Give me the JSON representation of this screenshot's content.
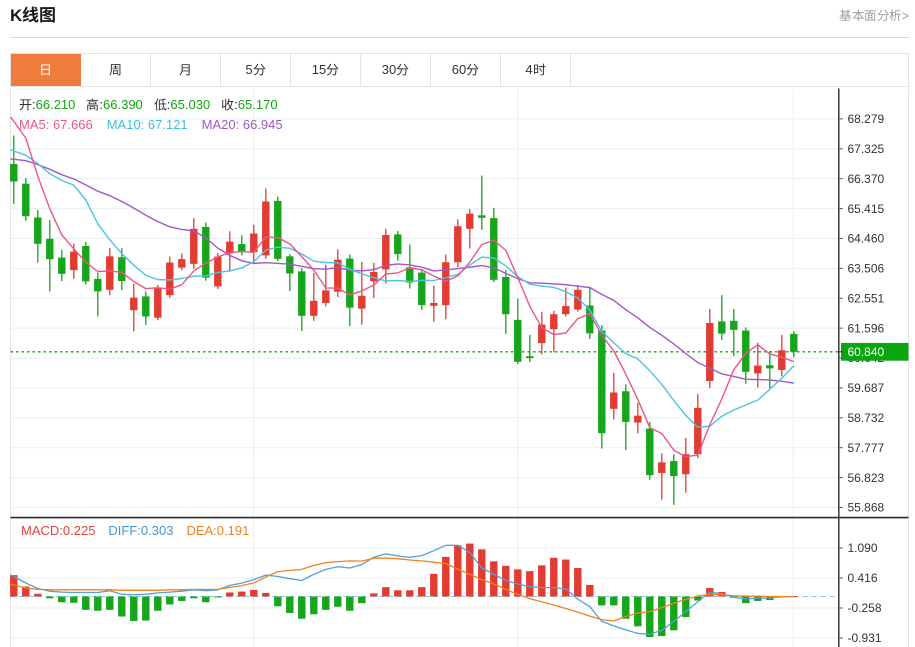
{
  "header": {
    "title": "K线图",
    "link_label": "基本面分析>"
  },
  "tabs": {
    "active_index": 0,
    "items": [
      {
        "id": "day",
        "label": "日"
      },
      {
        "id": "week",
        "label": "周"
      },
      {
        "id": "month",
        "label": "月"
      },
      {
        "id": "5min",
        "label": "5分"
      },
      {
        "id": "15min",
        "label": "15分"
      },
      {
        "id": "30min",
        "label": "30分"
      },
      {
        "id": "60min",
        "label": "60分"
      },
      {
        "id": "4hour",
        "label": "4时"
      }
    ]
  },
  "info_bar": {
    "ohlc_items": [
      {
        "id": "open",
        "label": "开:",
        "value": "66.210"
      },
      {
        "id": "high",
        "label": "高:",
        "value": "66.390"
      },
      {
        "id": "low",
        "label": "低:",
        "value": "65.030"
      },
      {
        "id": "close",
        "label": "收:",
        "value": "65.170"
      }
    ],
    "ma_items": [
      {
        "id": "ma5",
        "label": "MA5:",
        "value": "67.666"
      },
      {
        "id": "ma10",
        "label": "MA10:",
        "value": "67.121"
      },
      {
        "id": "ma20",
        "label": "MA20:",
        "value": "66.945"
      }
    ]
  },
  "macd_info": {
    "items": [
      {
        "id": "macd",
        "label": "MACD:",
        "value": "0.225"
      },
      {
        "id": "diff",
        "label": "DIFF:",
        "value": "0.303"
      },
      {
        "id": "dea",
        "label": "DEA:",
        "value": "0.191"
      }
    ]
  },
  "colors": {
    "accent_orange": "#ee7c3d",
    "up_red": "#e23b31",
    "down_green": "#16a51b",
    "ma5_pink": "#ee5587",
    "ma10_cyan": "#4cc3e3",
    "ma20_purple": "#a158c5",
    "diff_blue": "#55a0d8",
    "dea_orange": "#f08220",
    "badge_green": "#0ba50f",
    "value_green": "#10a710",
    "macd_label_red": "#e8403a",
    "diff_label_blue": "#4495d8",
    "dea_label_orange": "#f0821e",
    "grid": "#e8eff6",
    "axis_dark": "#2b2b2b",
    "dotted_current": "#16a016",
    "zero_dash_blue": "#86c6ea"
  },
  "chart_data": {
    "type": "candlestick",
    "title": "K线图",
    "legend": [
      "MA5",
      "MA10",
      "MA20",
      "MACD",
      "DIFF",
      "DEA"
    ],
    "price_axis_ticks": [
      "68.279",
      "67.325",
      "66.370",
      "65.415",
      "64.460",
      "63.506",
      "62.551",
      "61.596",
      "60.642",
      "59.687",
      "58.732",
      "57.777",
      "56.823",
      "55.868"
    ],
    "macd_axis_ticks": [
      "1.090",
      "0.416",
      "-0.258",
      "-0.931"
    ],
    "current_price": "60.840",
    "current_price_value": 60.84,
    "candles_ohlc": [
      [
        66.84,
        67.75,
        65.56,
        66.28
      ],
      [
        66.21,
        66.39,
        65.03,
        65.17
      ],
      [
        65.13,
        65.37,
        63.69,
        64.29
      ],
      [
        64.45,
        65.05,
        62.77,
        63.8
      ],
      [
        63.85,
        64.1,
        63.1,
        63.33
      ],
      [
        63.45,
        64.3,
        63.17,
        64.04
      ],
      [
        64.22,
        64.35,
        62.99,
        63.09
      ],
      [
        63.17,
        63.37,
        61.97,
        62.77
      ],
      [
        62.82,
        64.16,
        62.65,
        63.89
      ],
      [
        63.86,
        64.15,
        62.81,
        63.1
      ],
      [
        62.17,
        63.01,
        61.49,
        62.57
      ],
      [
        62.61,
        62.77,
        61.69,
        61.97
      ],
      [
        61.93,
        62.97,
        61.85,
        62.89
      ],
      [
        62.65,
        63.88,
        62.57,
        63.69
      ],
      [
        63.53,
        63.98,
        63.45,
        63.8
      ],
      [
        63.65,
        65.11,
        63.49,
        64.77
      ],
      [
        64.83,
        64.97,
        63.11,
        63.21
      ],
      [
        62.93,
        64.0,
        62.85,
        63.88
      ],
      [
        63.99,
        64.69,
        63.4,
        64.36
      ],
      [
        64.28,
        64.56,
        63.92,
        64.02
      ],
      [
        64.02,
        64.9,
        63.65,
        64.62
      ],
      [
        63.92,
        66.06,
        63.81,
        65.64
      ],
      [
        65.66,
        65.8,
        63.74,
        63.81
      ],
      [
        63.89,
        63.96,
        62.78,
        63.34
      ],
      [
        63.41,
        63.51,
        61.5,
        61.99
      ],
      [
        61.99,
        63.36,
        61.83,
        62.47
      ],
      [
        62.4,
        63.62,
        62.29,
        62.8
      ],
      [
        62.76,
        64.11,
        62.59,
        63.78
      ],
      [
        63.82,
        63.95,
        61.66,
        62.25
      ],
      [
        62.22,
        63.71,
        61.71,
        62.63
      ],
      [
        63.09,
        63.68,
        62.56,
        63.39
      ],
      [
        63.47,
        64.77,
        63.02,
        64.57
      ],
      [
        64.59,
        64.7,
        63.75,
        63.96
      ],
      [
        63.54,
        64.27,
        62.86,
        63.05
      ],
      [
        63.37,
        63.48,
        62.18,
        62.33
      ],
      [
        62.31,
        62.95,
        61.8,
        62.4
      ],
      [
        62.33,
        63.95,
        61.88,
        63.7
      ],
      [
        63.7,
        65.07,
        63.55,
        64.85
      ],
      [
        64.77,
        65.4,
        64.14,
        65.25
      ],
      [
        65.2,
        66.47,
        64.73,
        65.12
      ],
      [
        65.11,
        65.44,
        63.07,
        63.14
      ],
      [
        63.23,
        63.45,
        61.41,
        62.04
      ],
      [
        61.86,
        62.54,
        60.45,
        60.52
      ],
      [
        60.7,
        61.38,
        60.52,
        60.64
      ],
      [
        61.12,
        62.12,
        60.75,
        61.71
      ],
      [
        61.56,
        62.15,
        60.82,
        62.04
      ],
      [
        62.04,
        62.89,
        61.97,
        62.3
      ],
      [
        62.19,
        62.97,
        62.12,
        62.82
      ],
      [
        62.32,
        62.87,
        61.25,
        61.43
      ],
      [
        61.52,
        61.69,
        57.75,
        58.24
      ],
      [
        59.02,
        60.17,
        58.68,
        59.54
      ],
      [
        59.58,
        59.8,
        57.7,
        58.6
      ],
      [
        58.58,
        59.21,
        58.24,
        58.8
      ],
      [
        58.39,
        58.6,
        56.75,
        56.9
      ],
      [
        56.97,
        57.6,
        56.12,
        57.31
      ],
      [
        57.35,
        57.57,
        55.95,
        56.87
      ],
      [
        56.93,
        58.09,
        56.34,
        57.57
      ],
      [
        57.57,
        59.5,
        57.45,
        59.05
      ],
      [
        59.91,
        62.21,
        59.68,
        61.76
      ],
      [
        61.81,
        62.65,
        61.22,
        61.42
      ],
      [
        61.83,
        62.21,
        60.7,
        61.54
      ],
      [
        61.52,
        61.62,
        59.82,
        60.2
      ],
      [
        60.15,
        61.13,
        59.7,
        60.4
      ],
      [
        60.41,
        60.87,
        59.68,
        60.31
      ],
      [
        60.26,
        61.38,
        60.06,
        60.89
      ],
      [
        61.41,
        61.49,
        60.66,
        60.84
      ]
    ],
    "ma_periods": [
      5,
      10,
      20
    ],
    "ma_seed_closes": [
      66.07,
      66.8,
      66.8,
      66.8,
      66.8,
      66.8,
      66.8,
      66.8,
      66.8,
      66.8,
      66.49,
      67.0,
      67.0,
      65.5,
      65.54,
      67.84,
      70.38,
      69.0,
      67.5
    ],
    "macd": {
      "hist": [
        0.48,
        0.225,
        0.06,
        -0.04,
        -0.13,
        -0.14,
        -0.3,
        -0.32,
        -0.3,
        -0.45,
        -0.55,
        -0.54,
        -0.32,
        -0.18,
        -0.1,
        -0.04,
        -0.13,
        -0.02,
        0.09,
        0.11,
        0.15,
        0.08,
        -0.22,
        -0.37,
        -0.5,
        -0.4,
        -0.3,
        -0.23,
        -0.32,
        -0.15,
        0.07,
        0.21,
        0.14,
        0.14,
        0.21,
        0.51,
        0.89,
        1.15,
        1.19,
        1.06,
        0.79,
        0.69,
        0.61,
        0.57,
        0.7,
        0.87,
        0.83,
        0.64,
        0.26,
        -0.2,
        -0.2,
        -0.5,
        -0.67,
        -0.91,
        -0.89,
        -0.76,
        -0.46,
        -0.09,
        0.19,
        0.1,
        -0.03,
        -0.15,
        -0.1,
        -0.08,
        -0.02,
        0.01
      ],
      "diff": [
        0.45,
        0.303,
        0.18,
        0.12,
        0.1,
        0.09,
        0.09,
        0.09,
        0.13,
        0.05,
        0.04,
        0.05,
        0.08,
        0.1,
        0.12,
        0.15,
        0.13,
        0.15,
        0.25,
        0.3,
        0.38,
        0.48,
        0.45,
        0.4,
        0.36,
        0.5,
        0.61,
        0.67,
        0.64,
        0.72,
        0.88,
        0.96,
        0.91,
        0.88,
        0.92,
        1.03,
        1.15,
        1.15,
        0.99,
        0.64,
        0.5,
        0.36,
        0.28,
        0.22,
        0.2,
        0.2,
        0.17,
        -0.06,
        -0.23,
        -0.56,
        -0.66,
        -0.75,
        -0.83,
        -0.85,
        -0.76,
        -0.56,
        -0.34,
        -0.12,
        0.1,
        0.06,
        -0.02,
        -0.05,
        -0.04,
        -0.03,
        -0.01,
        0.0
      ],
      "dea": [
        0.26,
        0.191,
        0.16,
        0.15,
        0.15,
        0.15,
        0.15,
        0.15,
        0.15,
        0.14,
        0.14,
        0.14,
        0.14,
        0.15,
        0.15,
        0.16,
        0.16,
        0.16,
        0.205,
        0.245,
        0.305,
        0.44,
        0.56,
        0.585,
        0.61,
        0.7,
        0.76,
        0.785,
        0.8,
        0.795,
        0.86,
        0.86,
        0.85,
        0.82,
        0.8,
        0.77,
        0.74,
        0.615,
        0.5,
        0.38,
        0.28,
        0.16,
        0.05,
        -0.05,
        -0.12,
        -0.19,
        -0.27,
        -0.35,
        -0.44,
        -0.52,
        -0.55,
        -0.45,
        -0.37,
        -0.34,
        -0.25,
        -0.15,
        -0.06,
        0.01,
        0.05,
        0.04,
        0.02,
        0.01,
        0.01,
        0.0,
        0.0,
        0.0
      ]
    }
  }
}
